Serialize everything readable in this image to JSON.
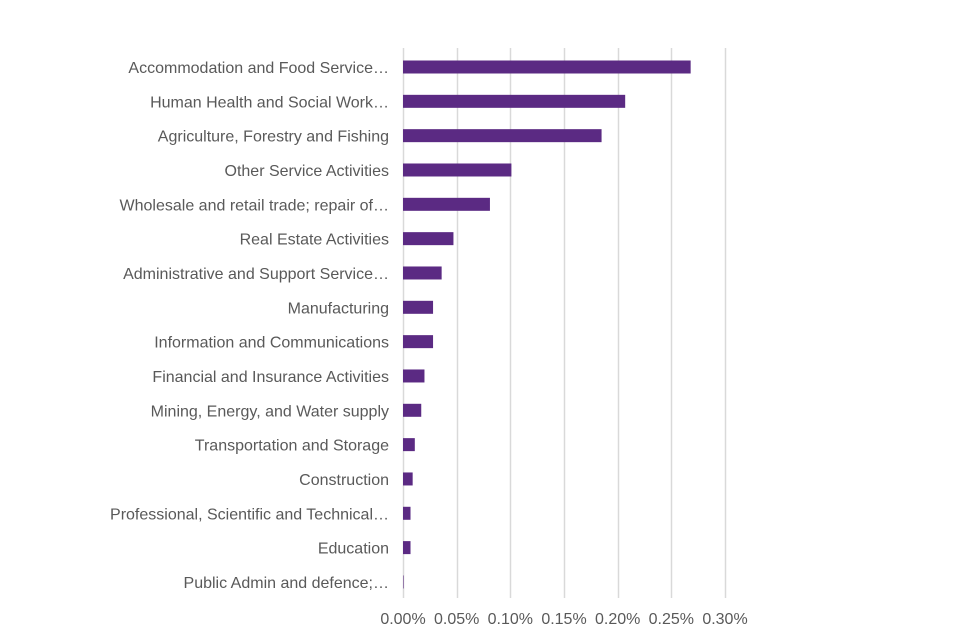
{
  "chart_data": {
    "type": "bar",
    "orientation": "horizontal",
    "title": "",
    "xlabel": "",
    "ylabel": "",
    "xlim": [
      0,
      0.3
    ],
    "grid": true,
    "legend": "none",
    "categories": [
      "Accommodation and Food Service…",
      "Human Health and Social Work…",
      "Agriculture, Forestry and Fishing",
      "Other Service Activities",
      "Wholesale and retail trade; repair of…",
      "Real Estate Activities",
      "Administrative and Support Service…",
      "Manufacturing",
      "Information and Communications",
      "Financial and Insurance Activities",
      "Mining, Energy, and Water supply",
      "Transportation and Storage",
      "Construction",
      "Professional, Scientific and Technical…",
      "Education",
      "Public Admin and defence;…"
    ],
    "values": [
      0.268,
      0.207,
      0.185,
      0.101,
      0.081,
      0.047,
      0.036,
      0.028,
      0.028,
      0.02,
      0.017,
      0.011,
      0.009,
      0.007,
      0.007,
      0.0005
    ],
    "ticks": [
      0.0,
      0.05,
      0.1,
      0.15,
      0.2,
      0.25,
      0.3
    ],
    "tick_labels": [
      "0.00%",
      "0.05%",
      "0.10%",
      "0.15%",
      "0.20%",
      "0.25%",
      "0.30%"
    ],
    "colors": {
      "bar": "#5b2a83",
      "grid": "#d9d9d9",
      "text": "#595959"
    }
  }
}
